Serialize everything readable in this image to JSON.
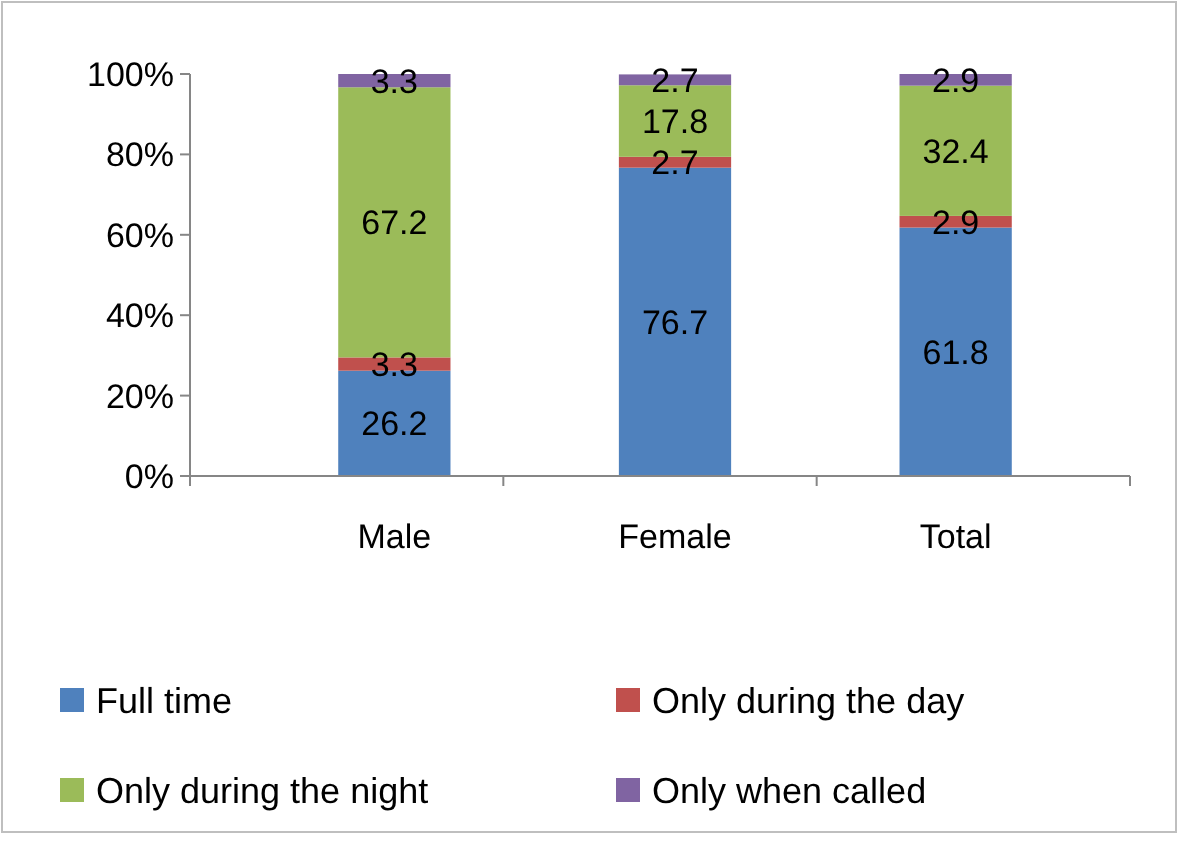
{
  "chart_data": {
    "type": "bar",
    "stacked": true,
    "categories": [
      "Male",
      "Female",
      "Total"
    ],
    "series": [
      {
        "name": "Full time",
        "color": "#4f81bd",
        "values": [
          26.2,
          76.7,
          61.8
        ]
      },
      {
        "name": "Only during the day",
        "color": "#c0504d",
        "values": [
          3.3,
          2.7,
          2.9
        ]
      },
      {
        "name": "Only during the night",
        "color": "#9bbb59",
        "values": [
          67.2,
          17.8,
          32.4
        ]
      },
      {
        "name": "Only when called",
        "color": "#8064a2",
        "values": [
          3.3,
          2.7,
          2.9
        ]
      }
    ],
    "ylim": [
      0,
      100
    ],
    "yticks": [
      {
        "value": 0,
        "label": "0%"
      },
      {
        "value": 20,
        "label": "20%"
      },
      {
        "value": 40,
        "label": "40%"
      },
      {
        "value": 60,
        "label": "60%"
      },
      {
        "value": 80,
        "label": "80%"
      },
      {
        "value": 100,
        "label": "100%"
      }
    ],
    "data_labels": true,
    "legend": "bottom",
    "grid": false
  }
}
